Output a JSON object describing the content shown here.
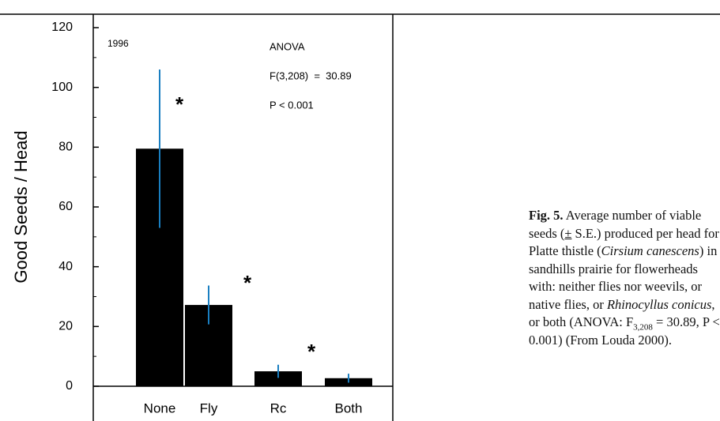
{
  "chart_data": {
    "type": "bar",
    "categories": [
      "None",
      "Fly",
      "Rc",
      "Both"
    ],
    "values": [
      79.5,
      27.2,
      5,
      2.7
    ],
    "errors": [
      26.5,
      6.5,
      2.2,
      1.5
    ],
    "color": "#000000",
    "error_color": "#1a7fc1",
    "y_label": "Good Seeds / Head",
    "ylim": [
      0,
      120
    ],
    "yticks": [
      0,
      20,
      40,
      60,
      80,
      100,
      120
    ],
    "annotations": {
      "year": "1996",
      "test": "ANOVA",
      "stat": "F(3,208)  =  30.89",
      "p": "P < 0.001",
      "star": "*"
    },
    "caption": {
      "label": "Fig. 5.",
      "t1": " Average number of viable seeds (",
      "pm": "±",
      "t2": " S.E.) produced per head for Platte thistle (",
      "sp1": "Cirsium canescens",
      "t3": ") in sandhills prairie for flowerheads with: neither flies nor weevils, or native flies, or ",
      "sp2": "Rhinocyllus conicus",
      "t4": ", or both (ANOVA: F",
      "sub": "3,208",
      "t5": " = 30.89, P < 0.001) (From Louda 2000)."
    }
  }
}
